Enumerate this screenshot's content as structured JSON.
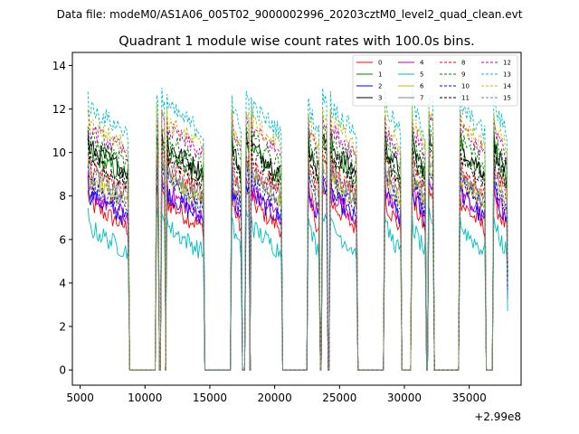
{
  "header": {
    "data_file": "Data file: modeM0/AS1A06_005T02_9000002996_20203cztM0_level2_quad_clean.evt"
  },
  "chart_data": {
    "type": "line",
    "title": "Quadrant 1 module wise count rates with 100.0s bins.",
    "xlabel": "",
    "ylabel": "",
    "x_offset_label": "+2.99e8",
    "xlim": [
      4400,
      39000
    ],
    "ylim": [
      -0.7,
      14.6
    ],
    "xticks": [
      5000,
      10000,
      15000,
      20000,
      25000,
      30000,
      35000
    ],
    "xtick_labels": [
      "5000",
      "10000",
      "15000",
      "20000",
      "25000",
      "30000",
      "35000"
    ],
    "yticks": [
      0,
      2,
      4,
      6,
      8,
      10,
      12,
      14
    ],
    "ytick_labels": [
      "0",
      "2",
      "4",
      "6",
      "8",
      "10",
      "12",
      "14"
    ],
    "legend_position": "top-right",
    "on_segments": [
      [
        5600,
        8700
      ],
      [
        10900,
        11000
      ],
      [
        11300,
        11500
      ],
      [
        11700,
        14500
      ],
      [
        16700,
        17400
      ],
      [
        17800,
        18000
      ],
      [
        18200,
        20500
      ],
      [
        22600,
        23400
      ],
      [
        23700,
        24000
      ],
      [
        24300,
        26300
      ],
      [
        28500,
        29700
      ],
      [
        30600,
        31600
      ],
      [
        31900,
        32200
      ],
      [
        34300,
        36200
      ],
      [
        36900,
        37900
      ]
    ],
    "series": [
      {
        "name": "0",
        "color": "#ff0000",
        "dash": "solid",
        "level": 6.5
      },
      {
        "name": "1",
        "color": "#008000",
        "dash": "solid",
        "level": 8.8
      },
      {
        "name": "2",
        "color": "#0000ff",
        "dash": "solid",
        "level": 6.9
      },
      {
        "name": "3",
        "color": "#000000",
        "dash": "solid",
        "level": 9.1
      },
      {
        "name": "4",
        "color": "#bf00bf",
        "dash": "solid",
        "level": 7.0
      },
      {
        "name": "5",
        "color": "#00bfbf",
        "dash": "solid",
        "level": 5.4
      },
      {
        "name": "6",
        "color": "#bfbf00",
        "dash": "solid",
        "level": 7.6
      },
      {
        "name": "7",
        "color": "#808080",
        "dash": "solid",
        "level": 8.0
      },
      {
        "name": "8",
        "color": "#ff0000",
        "dash": "dashed",
        "level": 8.2
      },
      {
        "name": "9",
        "color": "#008000",
        "dash": "dashed",
        "level": 9.4
      },
      {
        "name": "10",
        "color": "#0000ff",
        "dash": "dashed",
        "level": 7.4
      },
      {
        "name": "11",
        "color": "#000000",
        "dash": "dashed",
        "level": 8.6
      },
      {
        "name": "12",
        "color": "#bf00bf",
        "dash": "dashed",
        "level": 9.9
      },
      {
        "name": "13",
        "color": "#00bfbf",
        "dash": "dashed",
        "level": 10.9
      },
      {
        "name": "14",
        "color": "#bfbf00",
        "dash": "dashed",
        "level": 10.2
      },
      {
        "name": "15",
        "color": "#808080",
        "dash": "dashed",
        "level": 7.8
      }
    ]
  }
}
